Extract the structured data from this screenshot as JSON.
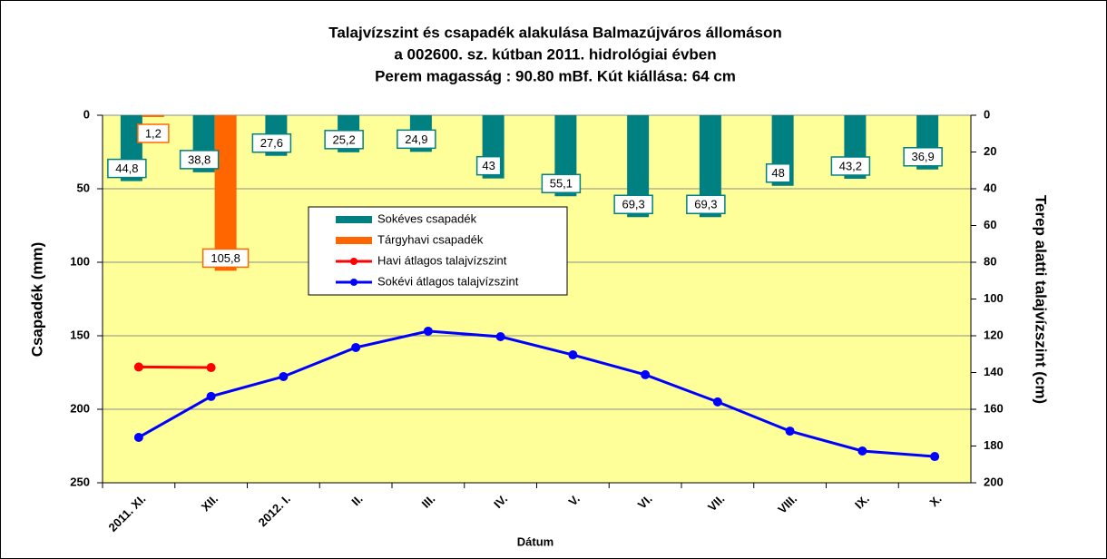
{
  "chart_data": {
    "type": "bar_line",
    "title": [
      "Talajvízszint és csapadék alakulása Balmazújváros állomáson",
      "a 002600. sz. kútban 2011. hidrológiai évben",
      "Perem magasság : 90.80 mBf.  Kút kiállása: 64 cm"
    ],
    "x_label": "Dátum",
    "y_label": "Csapadék (mm)",
    "y2_label": "Terep alatti talajvízszint (cm)",
    "categories": [
      "2011. XI.",
      "XII.",
      "2012. I.",
      "II.",
      "III.",
      "IV.",
      "V.",
      "VI.",
      "VII.",
      "VIII.",
      "IX.",
      "X."
    ],
    "ylim": [
      0,
      250
    ],
    "yticks": [
      0,
      50,
      100,
      150,
      200,
      250
    ],
    "y2lim": [
      0,
      200
    ],
    "y2ticks": [
      0,
      20,
      40,
      60,
      80,
      100,
      120,
      140,
      160,
      180,
      200
    ],
    "grid": true,
    "series": [
      {
        "name": "Sokéves csapadék",
        "type": "bar",
        "color": "#008080",
        "values": [
          44.8,
          38.8,
          27.6,
          25.2,
          24.9,
          43,
          55.1,
          69.3,
          69.3,
          48,
          43.2,
          36.9
        ],
        "value_labels": [
          "44,8",
          "38,8",
          "27,6",
          "25,2",
          "24,9",
          "43",
          "55,1",
          "69,3",
          "69,3",
          "48",
          "43,2",
          "36,9"
        ]
      },
      {
        "name": "Tárgyhavi csapadék",
        "type": "bar",
        "color": "#ff6600",
        "values": [
          1.2,
          105.8,
          null,
          null,
          null,
          null,
          null,
          null,
          null,
          null,
          null,
          null
        ],
        "value_labels": [
          "1,2",
          "105,8",
          null,
          null,
          null,
          null,
          null,
          null,
          null,
          null,
          null,
          null
        ]
      },
      {
        "name": "Havi átlagos talajvízszint",
        "type": "line",
        "axis": "y2",
        "color": "#ff0000",
        "values": [
          137,
          137.3,
          null,
          null,
          null,
          null,
          null,
          null,
          null,
          null,
          null,
          null
        ]
      },
      {
        "name": "Sokévi átlagos talajvízszint",
        "type": "line",
        "axis": "y2",
        "color": "#0000ff",
        "values": [
          175.3,
          153,
          142.2,
          126.4,
          117.5,
          120.5,
          130.4,
          141.2,
          156,
          171.9,
          182.7,
          185.7
        ]
      }
    ]
  }
}
